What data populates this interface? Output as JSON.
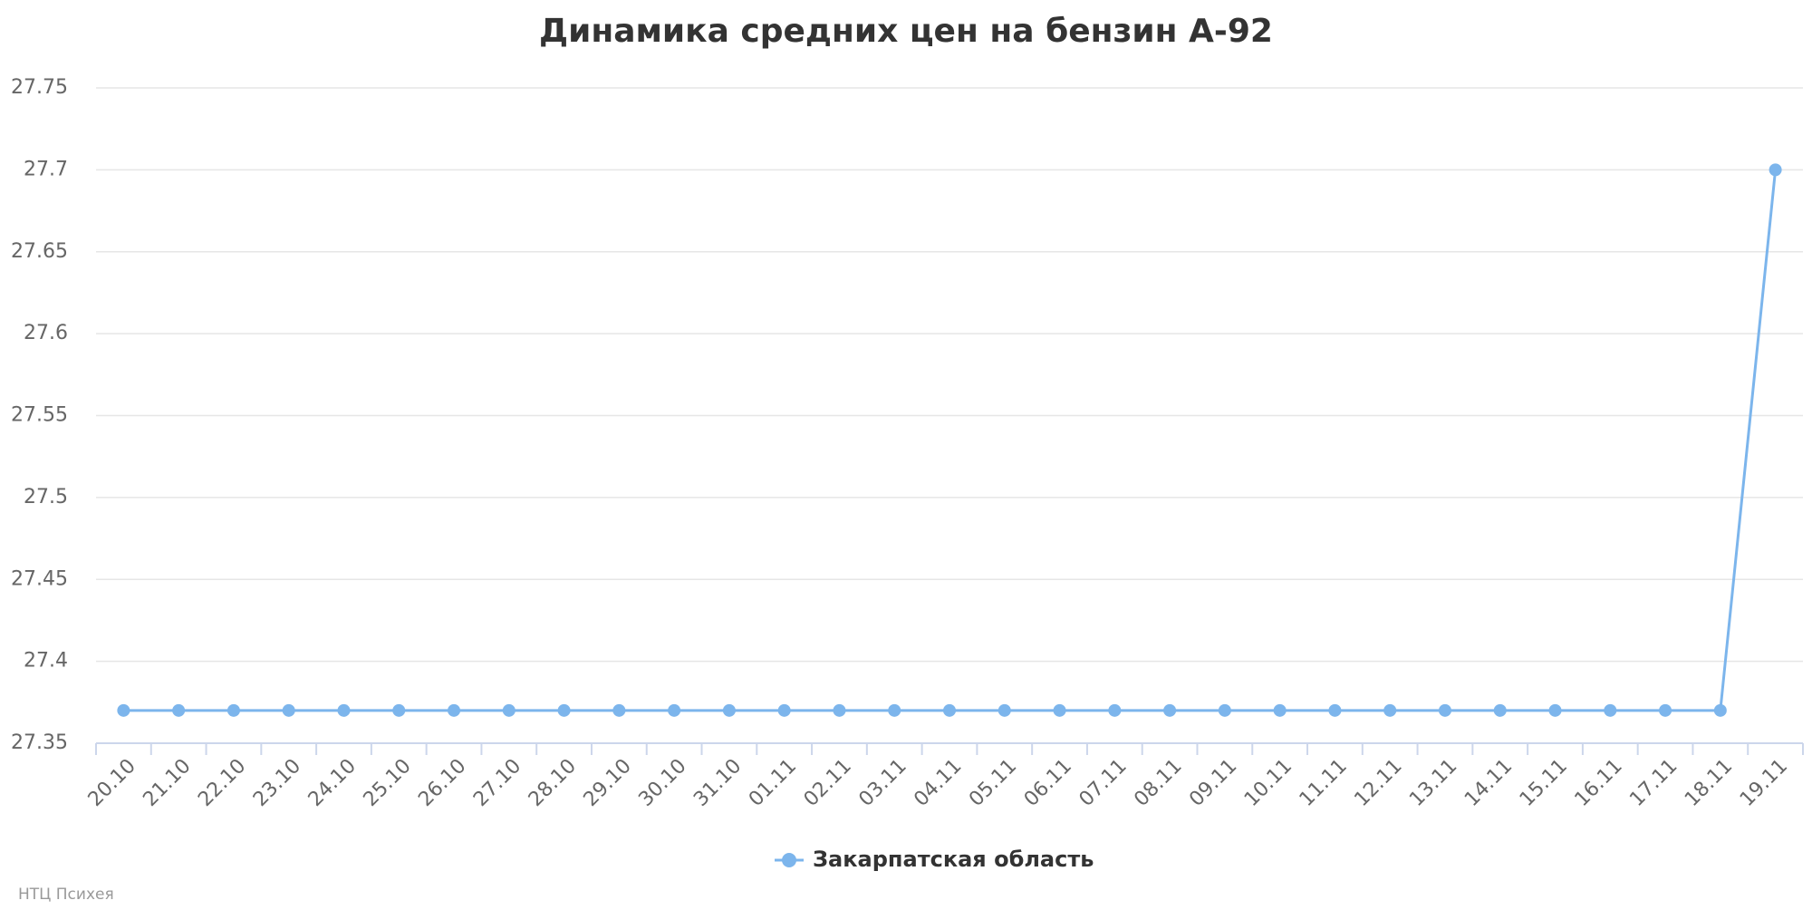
{
  "chart_data": {
    "type": "line",
    "title": "Динамика средних цен на бензин A-92",
    "categories": [
      "20.10",
      "21.10",
      "22.10",
      "23.10",
      "24.10",
      "25.10",
      "26.10",
      "27.10",
      "28.10",
      "29.10",
      "30.10",
      "31.10",
      "01.11",
      "02.11",
      "03.11",
      "04.11",
      "05.11",
      "06.11",
      "07.11",
      "08.11",
      "09.11",
      "10.11",
      "11.11",
      "12.11",
      "13.11",
      "14.11",
      "15.11",
      "16.11",
      "17.11",
      "18.11",
      "19.11"
    ],
    "series": [
      {
        "name": "Закарпатская область",
        "color": "#7cb5ec",
        "values": [
          27.37,
          27.37,
          27.37,
          27.37,
          27.37,
          27.37,
          27.37,
          27.37,
          27.37,
          27.37,
          27.37,
          27.37,
          27.37,
          27.37,
          27.37,
          27.37,
          27.37,
          27.37,
          27.37,
          27.37,
          27.37,
          27.37,
          27.37,
          27.37,
          27.37,
          27.37,
          27.37,
          27.37,
          27.37,
          27.37,
          27.7
        ]
      }
    ],
    "ylim": [
      27.35,
      27.75
    ],
    "yticks": [
      27.35,
      27.4,
      27.45,
      27.5,
      27.55,
      27.6,
      27.65,
      27.7,
      27.75
    ],
    "grid": true,
    "legend": "bottom",
    "credits": "НТЦ Психея"
  }
}
